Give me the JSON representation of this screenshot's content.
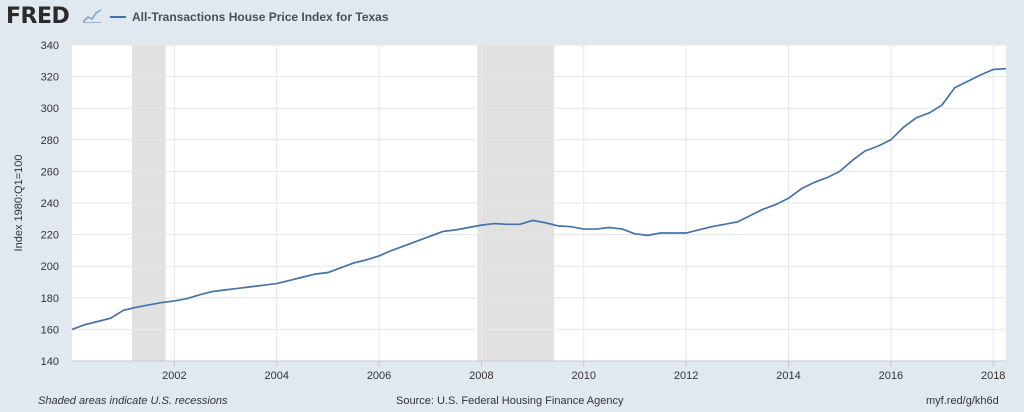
{
  "header": {
    "logo_text": "FRED",
    "logo_icon": "fred-chart-icon"
  },
  "chart_data": {
    "type": "line",
    "title": "All-Transactions House Price Index for Texas",
    "xlabel": "",
    "ylabel": "Index 1980:Q1=100",
    "xlim": [
      2000.0,
      2018.25
    ],
    "ylim": [
      140,
      340
    ],
    "yticks": [
      140,
      160,
      180,
      200,
      220,
      240,
      260,
      280,
      300,
      320,
      340
    ],
    "xticks": [
      2002,
      2004,
      2006,
      2008,
      2010,
      2012,
      2014,
      2016,
      2018
    ],
    "grid": true,
    "legend_position": "top-left",
    "line_color": "#4572a7",
    "recessions": [
      [
        2001.17,
        2001.83
      ],
      [
        2007.92,
        2009.42
      ]
    ],
    "series": [
      {
        "name": "All-Transactions House Price Index for Texas",
        "x": [
          2000.0,
          2000.25,
          2000.5,
          2000.75,
          2001.0,
          2001.25,
          2001.5,
          2001.75,
          2002.0,
          2002.25,
          2002.5,
          2002.75,
          2003.0,
          2003.25,
          2003.5,
          2003.75,
          2004.0,
          2004.25,
          2004.5,
          2004.75,
          2005.0,
          2005.25,
          2005.5,
          2005.75,
          2006.0,
          2006.25,
          2006.5,
          2006.75,
          2007.0,
          2007.25,
          2007.5,
          2007.75,
          2008.0,
          2008.25,
          2008.5,
          2008.75,
          2009.0,
          2009.25,
          2009.5,
          2009.75,
          2010.0,
          2010.25,
          2010.5,
          2010.75,
          2011.0,
          2011.25,
          2011.5,
          2011.75,
          2012.0,
          2012.25,
          2012.5,
          2012.75,
          2013.0,
          2013.25,
          2013.5,
          2013.75,
          2014.0,
          2014.25,
          2014.5,
          2014.75,
          2015.0,
          2015.25,
          2015.5,
          2015.75,
          2016.0,
          2016.25,
          2016.5,
          2016.75,
          2017.0,
          2017.25,
          2017.5,
          2017.75,
          2018.0,
          2018.25
        ],
        "values": [
          160,
          163,
          165,
          167,
          172,
          174,
          175.5,
          177,
          178,
          179.5,
          182,
          184,
          185,
          186,
          187,
          188,
          189,
          191,
          193,
          195,
          196,
          199,
          202,
          204,
          206.5,
          210,
          213,
          216,
          219,
          222,
          223,
          224.5,
          226,
          227,
          226.5,
          226.5,
          229,
          227.5,
          225.5,
          225,
          223.5,
          223.5,
          224.5,
          223.5,
          220.5,
          219.5,
          221,
          221,
          221,
          223,
          225,
          226.5,
          228,
          232,
          236,
          239,
          243,
          249,
          253,
          256,
          260,
          267,
          273,
          276,
          280,
          288,
          294,
          297,
          302,
          313,
          317,
          321,
          324.5,
          325
        ]
      }
    ]
  },
  "footer": {
    "left": "Shaded areas indicate U.S. recessions",
    "source": "Source: U.S. Federal Housing Finance Agency",
    "link": "myf.red/g/kh6d"
  }
}
